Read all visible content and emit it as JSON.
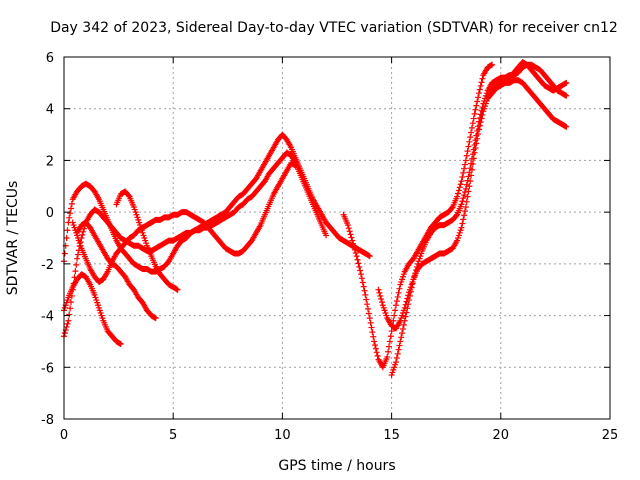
{
  "chart_data": {
    "type": "scatter",
    "title": "Day 342 of 2023, Sidereal Day-to-day VTEC variation (SDTVAR) for receiver cn12",
    "xlabel": "GPS time / hours",
    "ylabel": "SDTVAR / TECUs",
    "xlim": [
      0,
      25
    ],
    "ylim": [
      -8,
      6
    ],
    "xticks": [
      0,
      5,
      10,
      15,
      20,
      25
    ],
    "yticks": [
      -8,
      -6,
      -4,
      -2,
      0,
      2,
      4,
      6
    ],
    "grid": true,
    "grid_style": "dotted",
    "marker": "+",
    "color": "#ff0000",
    "series": [
      {
        "x": [
          0.0,
          0.2,
          0.4,
          0.6,
          0.8,
          1.0,
          1.2,
          1.4,
          1.6,
          1.8,
          2.0,
          2.2,
          2.4,
          2.6
        ],
        "y": [
          -3.8,
          -3.3,
          -2.9,
          -2.6,
          -2.4,
          -2.5,
          -2.8,
          -3.2,
          -3.7,
          -4.2,
          -4.6,
          -4.8,
          -5.0,
          -5.1
        ]
      },
      {
        "x": [
          0.0,
          0.2,
          0.4,
          0.6,
          0.8,
          1.0,
          1.2,
          1.4,
          1.6,
          1.8,
          2.0,
          2.2,
          2.4,
          2.6,
          2.8,
          3.0,
          3.2,
          3.4,
          3.6,
          3.8,
          4.0,
          4.2,
          4.4,
          4.6,
          4.8,
          5.0,
          5.2,
          5.4,
          5.6,
          5.8,
          6.0,
          6.2,
          6.4,
          6.6,
          6.8,
          7.0,
          7.2,
          7.4,
          7.6,
          7.8,
          8.0,
          8.2,
          8.4,
          8.6,
          8.8,
          9.0,
          9.2,
          9.4,
          9.6,
          9.8,
          10.0,
          10.2,
          10.4,
          10.6,
          10.8,
          11.0,
          11.2,
          11.4,
          11.6,
          11.8,
          12.0,
          12.2,
          12.4,
          12.6,
          12.8,
          13.0,
          13.2,
          13.4,
          13.6,
          13.8,
          14.0
        ],
        "y": [
          -1.9,
          -0.4,
          0.5,
          0.8,
          1.0,
          1.1,
          1.0,
          0.8,
          0.5,
          0.1,
          -0.3,
          -0.7,
          -1.1,
          -1.4,
          -1.6,
          -1.8,
          -2.0,
          -2.1,
          -2.2,
          -2.2,
          -2.3,
          -2.3,
          -2.2,
          -2.1,
          -1.9,
          -1.6,
          -1.3,
          -1.1,
          -1.0,
          -0.8,
          -0.7,
          -0.6,
          -0.5,
          -0.4,
          -0.3,
          -0.2,
          -0.1,
          0.0,
          0.2,
          0.4,
          0.6,
          0.7,
          0.9,
          1.1,
          1.3,
          1.6,
          1.9,
          2.2,
          2.5,
          2.8,
          3.0,
          2.8,
          2.5,
          2.1,
          1.7,
          1.3,
          0.9,
          0.5,
          0.2,
          -0.1,
          -0.4,
          -0.6,
          -0.8,
          -1.0,
          -1.1,
          -1.2,
          -1.3,
          -1.4,
          -1.5,
          -1.6,
          -1.7
        ]
      },
      {
        "x": [
          0.0,
          0.2,
          0.4,
          0.6,
          0.8,
          1.0,
          1.2,
          1.4,
          1.6,
          1.8,
          2.0,
          2.2,
          2.4,
          2.6,
          2.8,
          3.0,
          3.2,
          3.4,
          3.6,
          3.8,
          4.0,
          4.2,
          4.4,
          4.6,
          4.8,
          5.0,
          5.2,
          5.4,
          5.6,
          5.8,
          6.0,
          6.2,
          6.4,
          6.6,
          6.8,
          7.0,
          7.2,
          7.4,
          7.6,
          7.8,
          8.0,
          8.2,
          8.4,
          8.6,
          8.8,
          9.0,
          9.2,
          9.4,
          9.6,
          9.8,
          10.0,
          10.2,
          10.4,
          10.6,
          10.8,
          11.0,
          11.2,
          11.4,
          11.6,
          11.8,
          12.0
        ],
        "y": [
          -4.8,
          -4.2,
          -3.0,
          -1.8,
          -1.0,
          -0.4,
          -0.1,
          0.1,
          0.0,
          -0.2,
          -0.4,
          -0.6,
          -0.8,
          -1.0,
          -1.1,
          -1.2,
          -1.3,
          -1.3,
          -1.4,
          -1.5,
          -1.5,
          -1.4,
          -1.3,
          -1.2,
          -1.1,
          -1.1,
          -1.0,
          -0.9,
          -0.8,
          -0.8,
          -0.7,
          -0.7,
          -0.6,
          -0.6,
          -0.5,
          -0.4,
          -0.3,
          -0.2,
          -0.1,
          0.0,
          0.2,
          0.3,
          0.5,
          0.6,
          0.8,
          1.0,
          1.2,
          1.5,
          1.7,
          1.9,
          2.1,
          2.3,
          2.2,
          1.9,
          1.5,
          1.1,
          0.7,
          0.3,
          -0.1,
          -0.5,
          -0.9
        ]
      },
      {
        "x": [
          0.4,
          0.6,
          0.8,
          1.0,
          1.2,
          1.4,
          1.6,
          1.8,
          2.0,
          2.2,
          2.4,
          2.6,
          2.8,
          3.0,
          3.2,
          3.4,
          3.6,
          3.8,
          4.0,
          4.2,
          4.4,
          4.6,
          4.8,
          5.0,
          5.2,
          5.4,
          5.6,
          5.8,
          6.0,
          6.2,
          6.4,
          6.6,
          6.8,
          7.0,
          7.2,
          7.4,
          7.6,
          7.8,
          8.0,
          8.2,
          8.4,
          8.6,
          8.8,
          9.0,
          9.2,
          9.4,
          9.6,
          9.8,
          10.0,
          10.2,
          10.4,
          10.6
        ],
        "y": [
          -0.4,
          -0.9,
          -1.4,
          -1.8,
          -2.2,
          -2.5,
          -2.7,
          -2.6,
          -2.3,
          -1.9,
          -1.6,
          -1.4,
          -1.2,
          -1.0,
          -0.9,
          -0.7,
          -0.6,
          -0.5,
          -0.4,
          -0.3,
          -0.3,
          -0.2,
          -0.2,
          -0.1,
          -0.1,
          0.0,
          0.0,
          -0.1,
          -0.2,
          -0.3,
          -0.4,
          -0.6,
          -0.8,
          -1.0,
          -1.2,
          -1.4,
          -1.5,
          -1.6,
          -1.6,
          -1.5,
          -1.3,
          -1.1,
          -0.8,
          -0.5,
          -0.1,
          0.3,
          0.7,
          1.0,
          1.3,
          1.6,
          1.9,
          1.8
        ]
      },
      {
        "x": [
          0.6,
          0.8,
          1.0,
          1.2,
          1.4,
          1.6,
          1.8,
          2.0,
          2.2,
          2.4,
          2.6,
          2.8,
          3.0,
          3.2,
          3.4,
          3.6,
          3.8,
          4.0,
          4.2
        ],
        "y": [
          -0.8,
          -0.5,
          -0.4,
          -0.6,
          -0.9,
          -1.2,
          -1.5,
          -1.8,
          -2.0,
          -2.1,
          -2.3,
          -2.5,
          -2.8,
          -3.0,
          -3.3,
          -3.5,
          -3.8,
          -4.0,
          -4.1
        ]
      },
      {
        "x": [
          2.4,
          2.6,
          2.8,
          3.0,
          3.2,
          3.4,
          3.6,
          3.8,
          4.0,
          4.2,
          4.4,
          4.6,
          4.8,
          5.0,
          5.2
        ],
        "y": [
          0.3,
          0.7,
          0.8,
          0.6,
          0.2,
          -0.3,
          -0.8,
          -1.3,
          -1.7,
          -2.1,
          -2.4,
          -2.6,
          -2.8,
          -2.9,
          -3.0
        ]
      },
      {
        "x": [
          12.8,
          13.0,
          13.2,
          13.4,
          13.6,
          13.8,
          14.0,
          14.2,
          14.4,
          14.6,
          14.8,
          15.0,
          15.2,
          15.4,
          15.6,
          15.8,
          16.0,
          16.2,
          16.4,
          16.6,
          16.8,
          17.0,
          17.2,
          17.4,
          17.6,
          17.8,
          18.0,
          18.2,
          18.4,
          18.6,
          18.8,
          19.0,
          19.2,
          19.4,
          19.6
        ],
        "y": [
          -0.1,
          -0.5,
          -1.1,
          -1.7,
          -2.4,
          -3.2,
          -4.1,
          -5.0,
          -5.7,
          -6.0,
          -5.6,
          -4.6,
          -3.6,
          -2.8,
          -2.3,
          -2.0,
          -1.8,
          -1.5,
          -1.2,
          -0.9,
          -0.6,
          -0.4,
          -0.2,
          -0.1,
          0.0,
          0.2,
          0.6,
          1.2,
          2.0,
          2.9,
          3.8,
          4.6,
          5.3,
          5.6,
          5.7
        ]
      },
      {
        "x": [
          14.4,
          14.6,
          14.8,
          15.0,
          15.2,
          15.4,
          15.6,
          15.8,
          16.0,
          16.2,
          16.4,
          16.6,
          16.8,
          17.0,
          17.2,
          17.4,
          17.6,
          17.8,
          18.0,
          18.2,
          18.4,
          18.6,
          18.8,
          19.0,
          19.2,
          19.4,
          19.6,
          19.8,
          20.0,
          20.2,
          20.4,
          20.6,
          20.8,
          21.0,
          21.2,
          21.4,
          21.6,
          21.8,
          22.0,
          22.2,
          22.4,
          22.6,
          22.8,
          23.0
        ],
        "y": [
          -3.0,
          -3.6,
          -4.1,
          -4.4,
          -4.5,
          -4.2,
          -3.7,
          -3.1,
          -2.6,
          -2.2,
          -2.0,
          -1.9,
          -1.8,
          -1.7,
          -1.6,
          -1.6,
          -1.5,
          -1.4,
          -1.1,
          -0.6,
          0.2,
          1.2,
          2.3,
          3.2,
          3.9,
          4.4,
          4.6,
          4.8,
          4.9,
          5.0,
          5.0,
          5.1,
          5.1,
          5.0,
          4.8,
          4.6,
          4.4,
          4.2,
          4.0,
          3.8,
          3.6,
          3.5,
          3.4,
          3.3
        ]
      },
      {
        "x": [
          15.0,
          15.2,
          15.4,
          15.6,
          15.8,
          16.0,
          16.2,
          16.4,
          16.6,
          16.8,
          17.0,
          17.2,
          17.4,
          17.6,
          17.8,
          18.0,
          18.2,
          18.4,
          18.6,
          18.8,
          19.0,
          19.2,
          19.4,
          19.6,
          19.8,
          20.0,
          20.2,
          20.4,
          20.6,
          20.8,
          21.0,
          21.2,
          21.4,
          21.6,
          21.8,
          22.0,
          22.2,
          22.4,
          22.6,
          22.8,
          23.0
        ],
        "y": [
          -6.3,
          -5.8,
          -5.0,
          -4.2,
          -3.4,
          -2.6,
          -2.0,
          -1.5,
          -1.1,
          -0.8,
          -0.6,
          -0.5,
          -0.5,
          -0.4,
          -0.3,
          -0.1,
          0.3,
          0.9,
          1.7,
          2.6,
          3.5,
          4.2,
          4.7,
          5.0,
          5.1,
          5.2,
          5.2,
          5.3,
          5.3,
          5.4,
          5.6,
          5.7,
          5.7,
          5.6,
          5.5,
          5.3,
          5.1,
          4.9,
          4.7,
          4.6,
          4.5
        ]
      },
      {
        "x": [
          19.4,
          19.6,
          19.8,
          20.0,
          20.2,
          20.4,
          20.6,
          20.8,
          21.0,
          21.2,
          21.4,
          21.6,
          21.8,
          22.0,
          22.2,
          22.4,
          22.6,
          22.8,
          23.0
        ],
        "y": [
          4.4,
          4.7,
          4.9,
          5.0,
          5.1,
          5.2,
          5.4,
          5.6,
          5.8,
          5.7,
          5.5,
          5.3,
          5.1,
          4.9,
          4.8,
          4.7,
          4.8,
          4.9,
          5.0
        ]
      }
    ]
  }
}
